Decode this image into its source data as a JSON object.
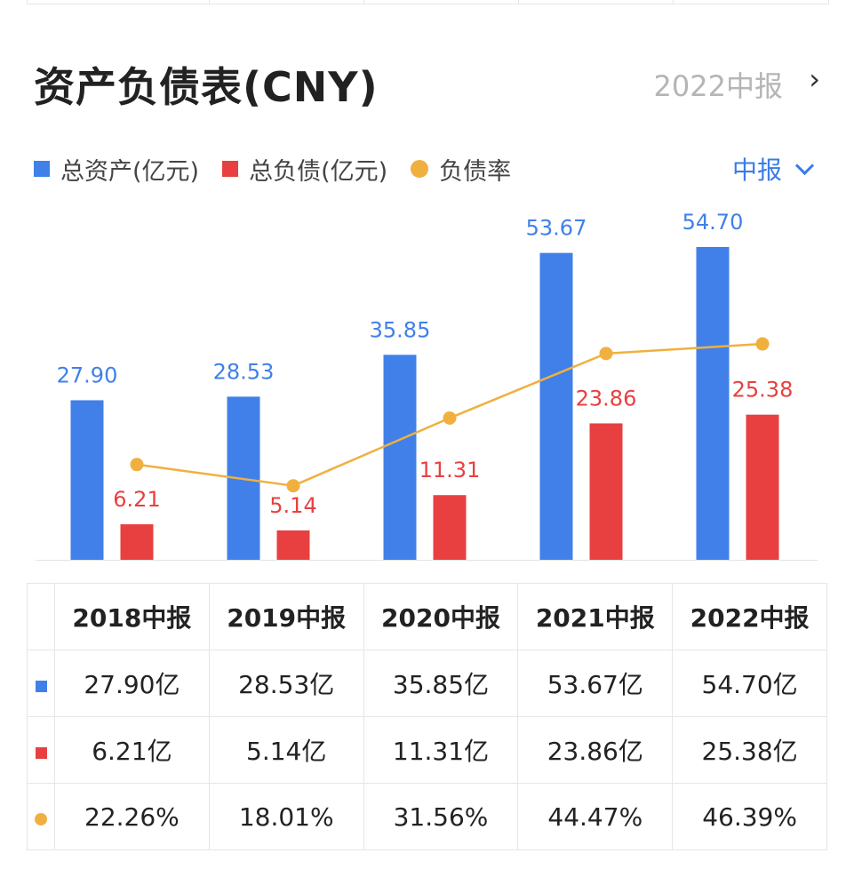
{
  "header": {
    "title": "资产负债表(CNY)",
    "period": "2022中报",
    "period_arrow": "›"
  },
  "legend": {
    "total_assets": "总资产(亿元)",
    "total_liabilities": "总负债(亿元)",
    "debt_ratio": "负债率"
  },
  "report_type_dropdown": "中报",
  "colors": {
    "assets": "#4080e8",
    "liabilities": "#e84040",
    "ratio": "#f0b040"
  },
  "chart_data": {
    "type": "bar",
    "categories": [
      "2018中报",
      "2019中报",
      "2020中报",
      "2021中报",
      "2022中报"
    ],
    "series": [
      {
        "name": "总资产(亿元)",
        "type": "bar",
        "values": [
          27.9,
          28.53,
          35.85,
          53.67,
          54.7
        ],
        "labels": [
          "27.90",
          "28.53",
          "35.85",
          "53.67",
          "54.70"
        ]
      },
      {
        "name": "总负债(亿元)",
        "type": "bar",
        "values": [
          6.21,
          5.14,
          11.31,
          23.86,
          25.38
        ],
        "labels": [
          "6.21",
          "5.14",
          "11.31",
          "23.86",
          "25.38"
        ]
      },
      {
        "name": "负债率",
        "type": "line",
        "values": [
          22.26,
          18.01,
          31.56,
          44.47,
          46.39
        ],
        "unit": "%"
      }
    ],
    "ylim": [
      0,
      54.7
    ],
    "ratio_ylim": [
      0,
      80
    ],
    "grid": false
  },
  "table": {
    "headers": [
      "2018中报",
      "2019中报",
      "2020中报",
      "2021中报",
      "2022中报"
    ],
    "rows": [
      {
        "marker": "square",
        "color": "#4080e8",
        "cells": [
          "27.90亿",
          "28.53亿",
          "35.85亿",
          "53.67亿",
          "54.70亿"
        ]
      },
      {
        "marker": "square",
        "color": "#e84040",
        "cells": [
          "6.21亿",
          "5.14亿",
          "11.31亿",
          "23.86亿",
          "25.38亿"
        ]
      },
      {
        "marker": "dot",
        "color": "#f0b040",
        "cells": [
          "22.26%",
          "18.01%",
          "31.56%",
          "44.47%",
          "46.39%"
        ]
      }
    ]
  }
}
